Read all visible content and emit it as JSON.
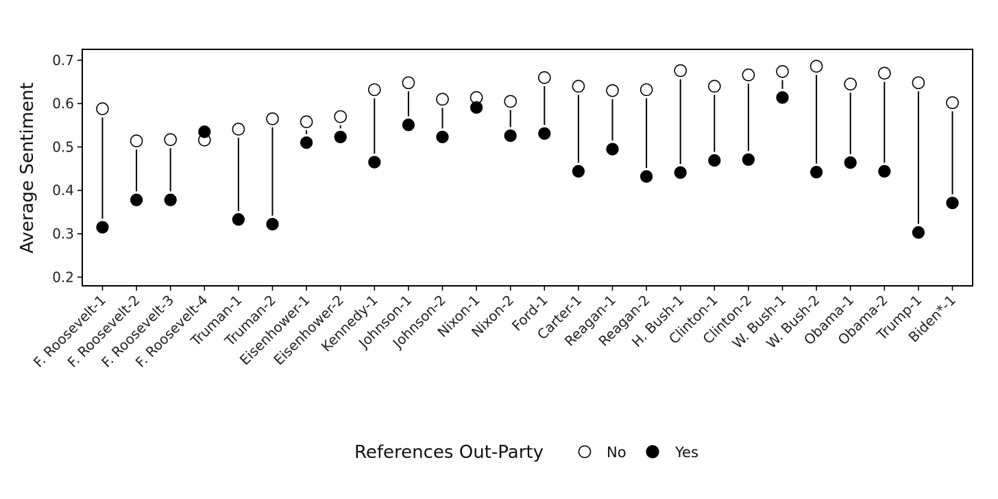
{
  "chart_data": {
    "type": "scatter",
    "subtype": "dumbbell",
    "title": "",
    "xlabel": "",
    "ylabel": "Average Sentiment",
    "ylim": [
      0.18,
      0.725
    ],
    "yticks": [
      "0.2",
      "0.3",
      "0.4",
      "0.5",
      "0.6",
      "0.7"
    ],
    "ytick_values": [
      0.2,
      0.3,
      0.4,
      0.5,
      0.6,
      0.7
    ],
    "grid": false,
    "legend_position": "bottom",
    "legend_title": "References Out-Party",
    "categories": [
      "F. Roosevelt-1",
      "F. Roosevelt-2",
      "F. Roosevelt-3",
      "F. Roosevelt-4",
      "Truman-1",
      "Truman-2",
      "Eisenhower-1",
      "Eisenhower-2",
      "Kennedy-1",
      "Johnson-1",
      "Johnson-2",
      "Nixon-1",
      "Nixon-2",
      "Ford-1",
      "Carter-1",
      "Reagan-1",
      "Reagan-2",
      "H. Bush-1",
      "Clinton-1",
      "Clinton-2",
      "W. Bush-1",
      "W. Bush-2",
      "Obama-1",
      "Obama-2",
      "Trump-1",
      "Biden*-1"
    ],
    "series": [
      {
        "name": "No",
        "marker": "open-circle",
        "values": [
          0.588,
          0.514,
          0.517,
          0.516,
          0.541,
          0.565,
          0.558,
          0.57,
          0.632,
          0.648,
          0.61,
          0.614,
          0.605,
          0.66,
          0.64,
          0.63,
          0.632,
          0.676,
          0.64,
          0.666,
          0.674,
          0.686,
          0.645,
          0.67,
          0.648,
          0.602
        ]
      },
      {
        "name": "Yes",
        "marker": "filled-circle",
        "values": [
          0.315,
          0.378,
          0.378,
          0.535,
          0.333,
          0.322,
          0.51,
          0.523,
          0.465,
          0.551,
          0.523,
          0.591,
          0.526,
          0.531,
          0.444,
          0.495,
          0.432,
          0.441,
          0.469,
          0.471,
          0.614,
          0.442,
          0.464,
          0.444,
          0.303,
          0.371
        ]
      }
    ]
  }
}
